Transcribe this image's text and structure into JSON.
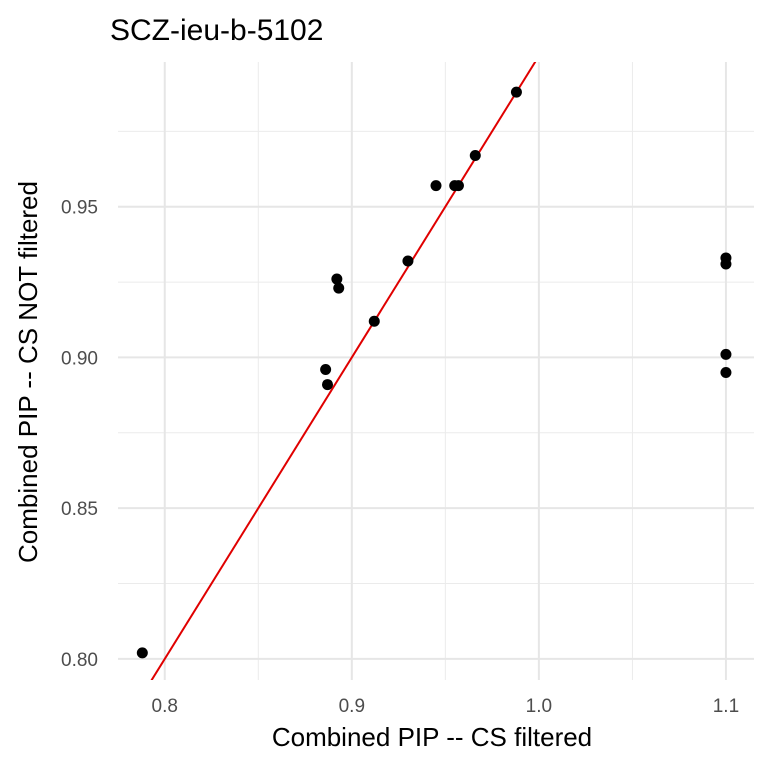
{
  "chart_data": {
    "type": "scatter",
    "title": "SCZ-ieu-b-5102",
    "xlabel": "Combined PIP -- CS filtered",
    "ylabel": "Combined PIP -- CS NOT filtered",
    "xlim": [
      0.775,
      1.115
    ],
    "ylim": [
      0.793,
      0.998
    ],
    "x_ticks": [
      0.8,
      0.9,
      1.0,
      1.1
    ],
    "x_tick_labels": [
      "0.8",
      "0.9",
      "1.0",
      "1.1"
    ],
    "x_minor_ticks": [
      0.85,
      0.95,
      1.05
    ],
    "y_ticks": [
      0.8,
      0.85,
      0.9,
      0.95
    ],
    "y_tick_labels": [
      "0.80",
      "0.85",
      "0.90",
      "0.95"
    ],
    "y_minor_ticks": [
      0.825,
      0.875,
      0.925,
      0.975
    ],
    "grid": true,
    "points": [
      {
        "x": 0.788,
        "y": 0.802
      },
      {
        "x": 0.886,
        "y": 0.896
      },
      {
        "x": 0.887,
        "y": 0.891
      },
      {
        "x": 0.892,
        "y": 0.926
      },
      {
        "x": 0.893,
        "y": 0.923
      },
      {
        "x": 0.912,
        "y": 0.912
      },
      {
        "x": 0.93,
        "y": 0.932
      },
      {
        "x": 0.945,
        "y": 0.957
      },
      {
        "x": 0.955,
        "y": 0.957
      },
      {
        "x": 0.957,
        "y": 0.957
      },
      {
        "x": 0.966,
        "y": 0.967
      },
      {
        "x": 0.988,
        "y": 0.988
      },
      {
        "x": 1.1,
        "y": 0.933
      },
      {
        "x": 1.1,
        "y": 0.931
      },
      {
        "x": 1.1,
        "y": 0.901
      },
      {
        "x": 1.1,
        "y": 0.895
      }
    ],
    "reference_line": {
      "slope": 1,
      "intercept": 0,
      "color": "#e00000"
    },
    "point_color": "#000000"
  }
}
